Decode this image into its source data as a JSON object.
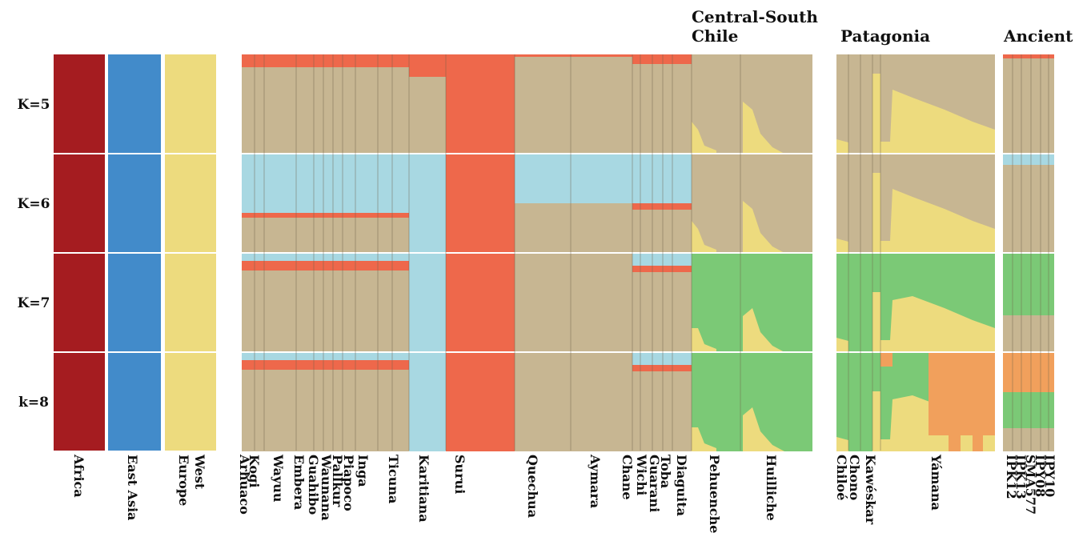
{
  "row_labels": [
    "K=5",
    "K=6",
    "K=7",
    "k=8"
  ],
  "group_headers": [
    {
      "lines": [
        "Central-South",
        "Chile"
      ]
    },
    {
      "lines": [
        "Patagonia"
      ]
    },
    {
      "lines": [
        "Ancient"
      ]
    }
  ],
  "reference_labels": [
    {
      "lines": [
        "Africa"
      ]
    },
    {
      "lines": [
        "East Asia"
      ]
    },
    {
      "lines": [
        "West",
        "Europe"
      ]
    }
  ],
  "population_labels": [
    "Arhuaco",
    "Kogi",
    "Wayuu",
    "Embera",
    "Guahibo",
    "Waunana",
    "Pallkur",
    "Piapoco",
    "Inga",
    "Ticuna",
    "Karitiana",
    "Surui",
    "Quechua",
    "Aymara",
    "Chane",
    "Wichi",
    "Guarani",
    "Toba",
    "Diaguita",
    "Pehuenche",
    "Huilliche",
    "Chiloé",
    "Chono",
    "Kawéskar",
    "Yámana",
    "IPK12",
    "IPK13",
    "SMA577",
    "IPY08",
    "IPY10"
  ]
}
